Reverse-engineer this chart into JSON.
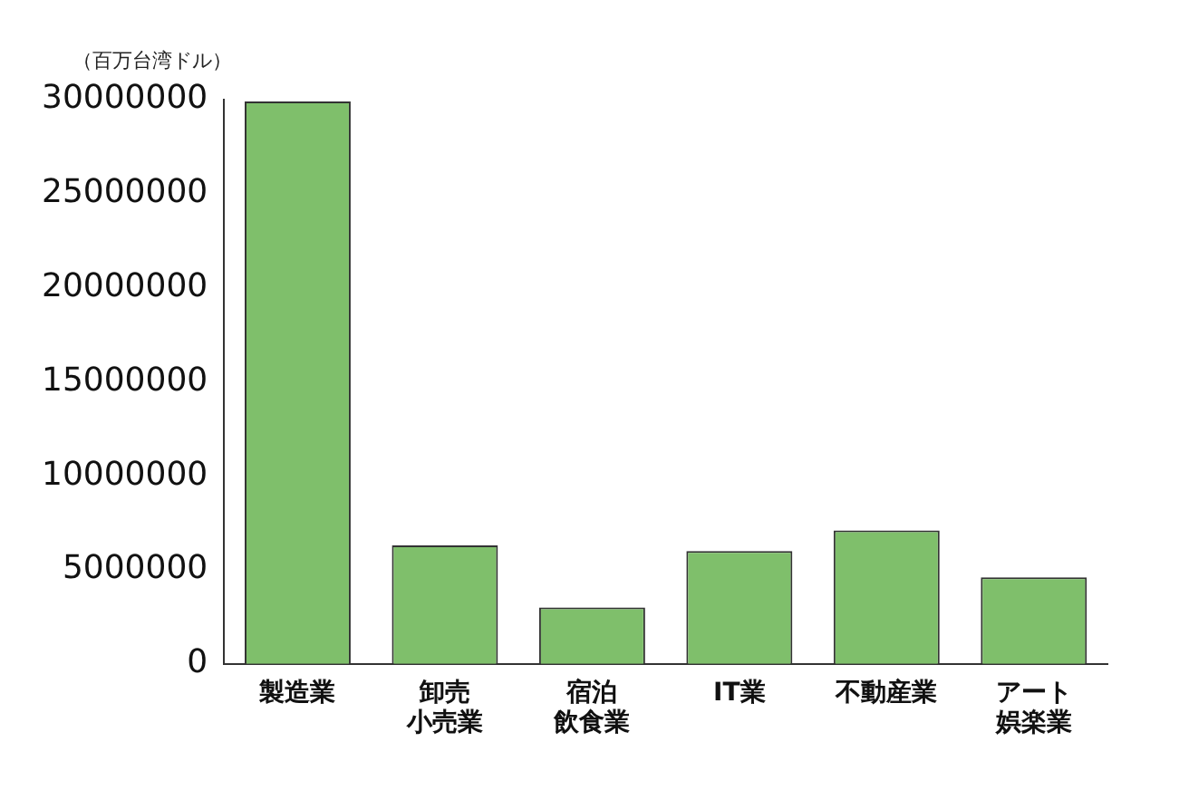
{
  "chart_data": {
    "type": "bar",
    "ylabel": "（百万台湾ドル）",
    "categories": [
      "製造業",
      "卸売小売業",
      "宿泊飲食業",
      "IT業",
      "不動産業",
      "アート娯楽業"
    ],
    "values": [
      29900000,
      6300000,
      3000000,
      6000000,
      7100000,
      4600000
    ],
    "color": "#7fbf6b",
    "ylim": [
      0,
      30000000
    ],
    "yticks": [
      0,
      5000000,
      10000000,
      15000000,
      20000000,
      25000000,
      30000000
    ],
    "grid": false,
    "legend": false
  }
}
